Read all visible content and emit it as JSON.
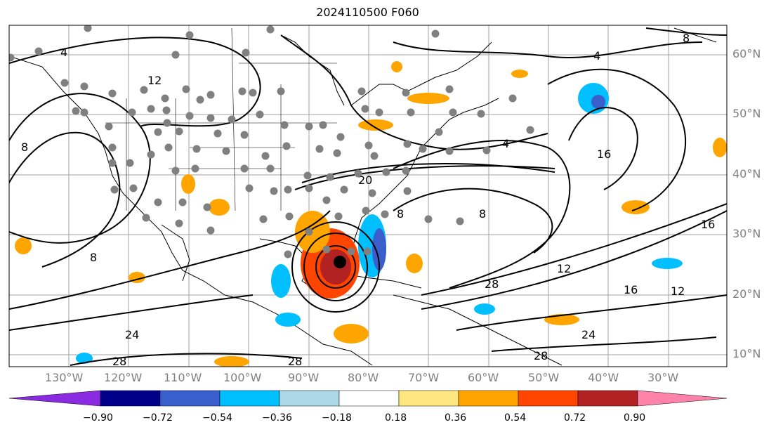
{
  "title": "2024110500 F060",
  "longitude_labels": [
    "130°W",
    "120°W",
    "110°W",
    "100°W",
    "90°W",
    "80°W",
    "70°W",
    "60°W",
    "50°W",
    "40°W",
    "30°W"
  ],
  "latitude_labels": [
    "60°N",
    "50°N",
    "40°N",
    "30°N",
    "20°N",
    "10°N"
  ],
  "colorbar": {
    "tick_labels": [
      "−0.90",
      "−0.72",
      "−0.54",
      "−0.36",
      "−0.18",
      "0.18",
      "0.36",
      "0.54",
      "0.72",
      "0.90"
    ],
    "colors": [
      "#8a2be2",
      "#00008b",
      "#3a5fcd",
      "#00bfff",
      "#add8e6",
      "#ffffff",
      "#ffe680",
      "#ffa500",
      "#ff4500",
      "#b22222",
      "#ff82ab"
    ]
  },
  "contour_labels": [
    "4",
    "8",
    "12",
    "16",
    "20",
    "24",
    "28"
  ]
}
